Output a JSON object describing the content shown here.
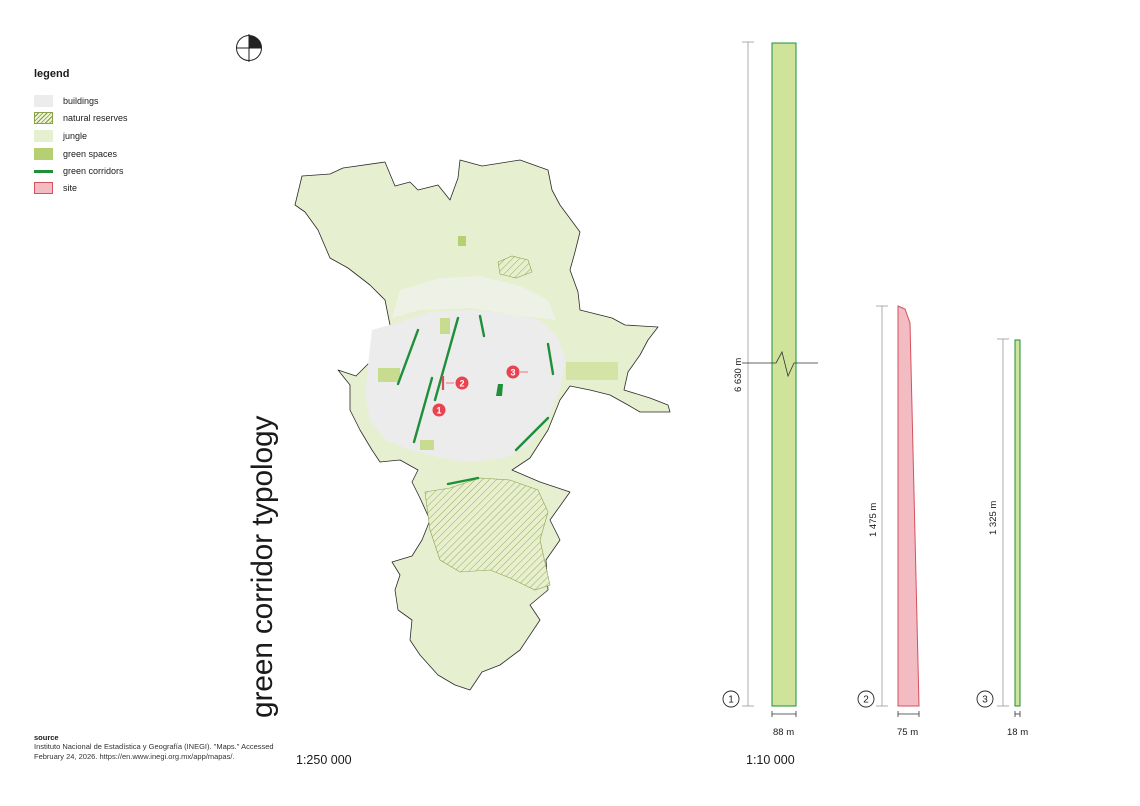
{
  "legend": {
    "title": "legend",
    "items": [
      {
        "label": "buildings",
        "swatch": "buildings"
      },
      {
        "label": "natural reserves",
        "swatch": "reserves"
      },
      {
        "label": "jungle",
        "swatch": "jungle"
      },
      {
        "label": "green spaces",
        "swatch": "green"
      },
      {
        "label": "green corridors",
        "swatch": "corridor"
      },
      {
        "label": "site",
        "swatch": "site"
      }
    ]
  },
  "title": "green corridor typology",
  "source": {
    "heading": "source",
    "text": "Instituto Nacional de Estadística y Geografía (INEGI). \"Maps.\" Accessed February 24, 2026. https://en.www.inegi.org.mx/app/mapas/."
  },
  "map": {
    "scale": "1:250 000",
    "markers": [
      "1",
      "2",
      "3"
    ]
  },
  "profiles": {
    "scale": "1:10 000",
    "items": [
      {
        "number": "1",
        "length": "6 630 m",
        "width": "88 m"
      },
      {
        "number": "2",
        "length": "1 475 m",
        "width": "75 m"
      },
      {
        "number": "3",
        "length": "1 325 m",
        "width": "18 m"
      }
    ]
  },
  "colors": {
    "jungle": "#e6efcf",
    "buildings": "#ececec",
    "green_spaces": "#b5cf72",
    "corridor": "#1f8f3a",
    "site_fill": "#f3bcc3",
    "site_stroke": "#d5505e",
    "marker": "#e8434f",
    "profile_green": "#cfe39a"
  },
  "icons": [
    "north-arrow-icon"
  ]
}
